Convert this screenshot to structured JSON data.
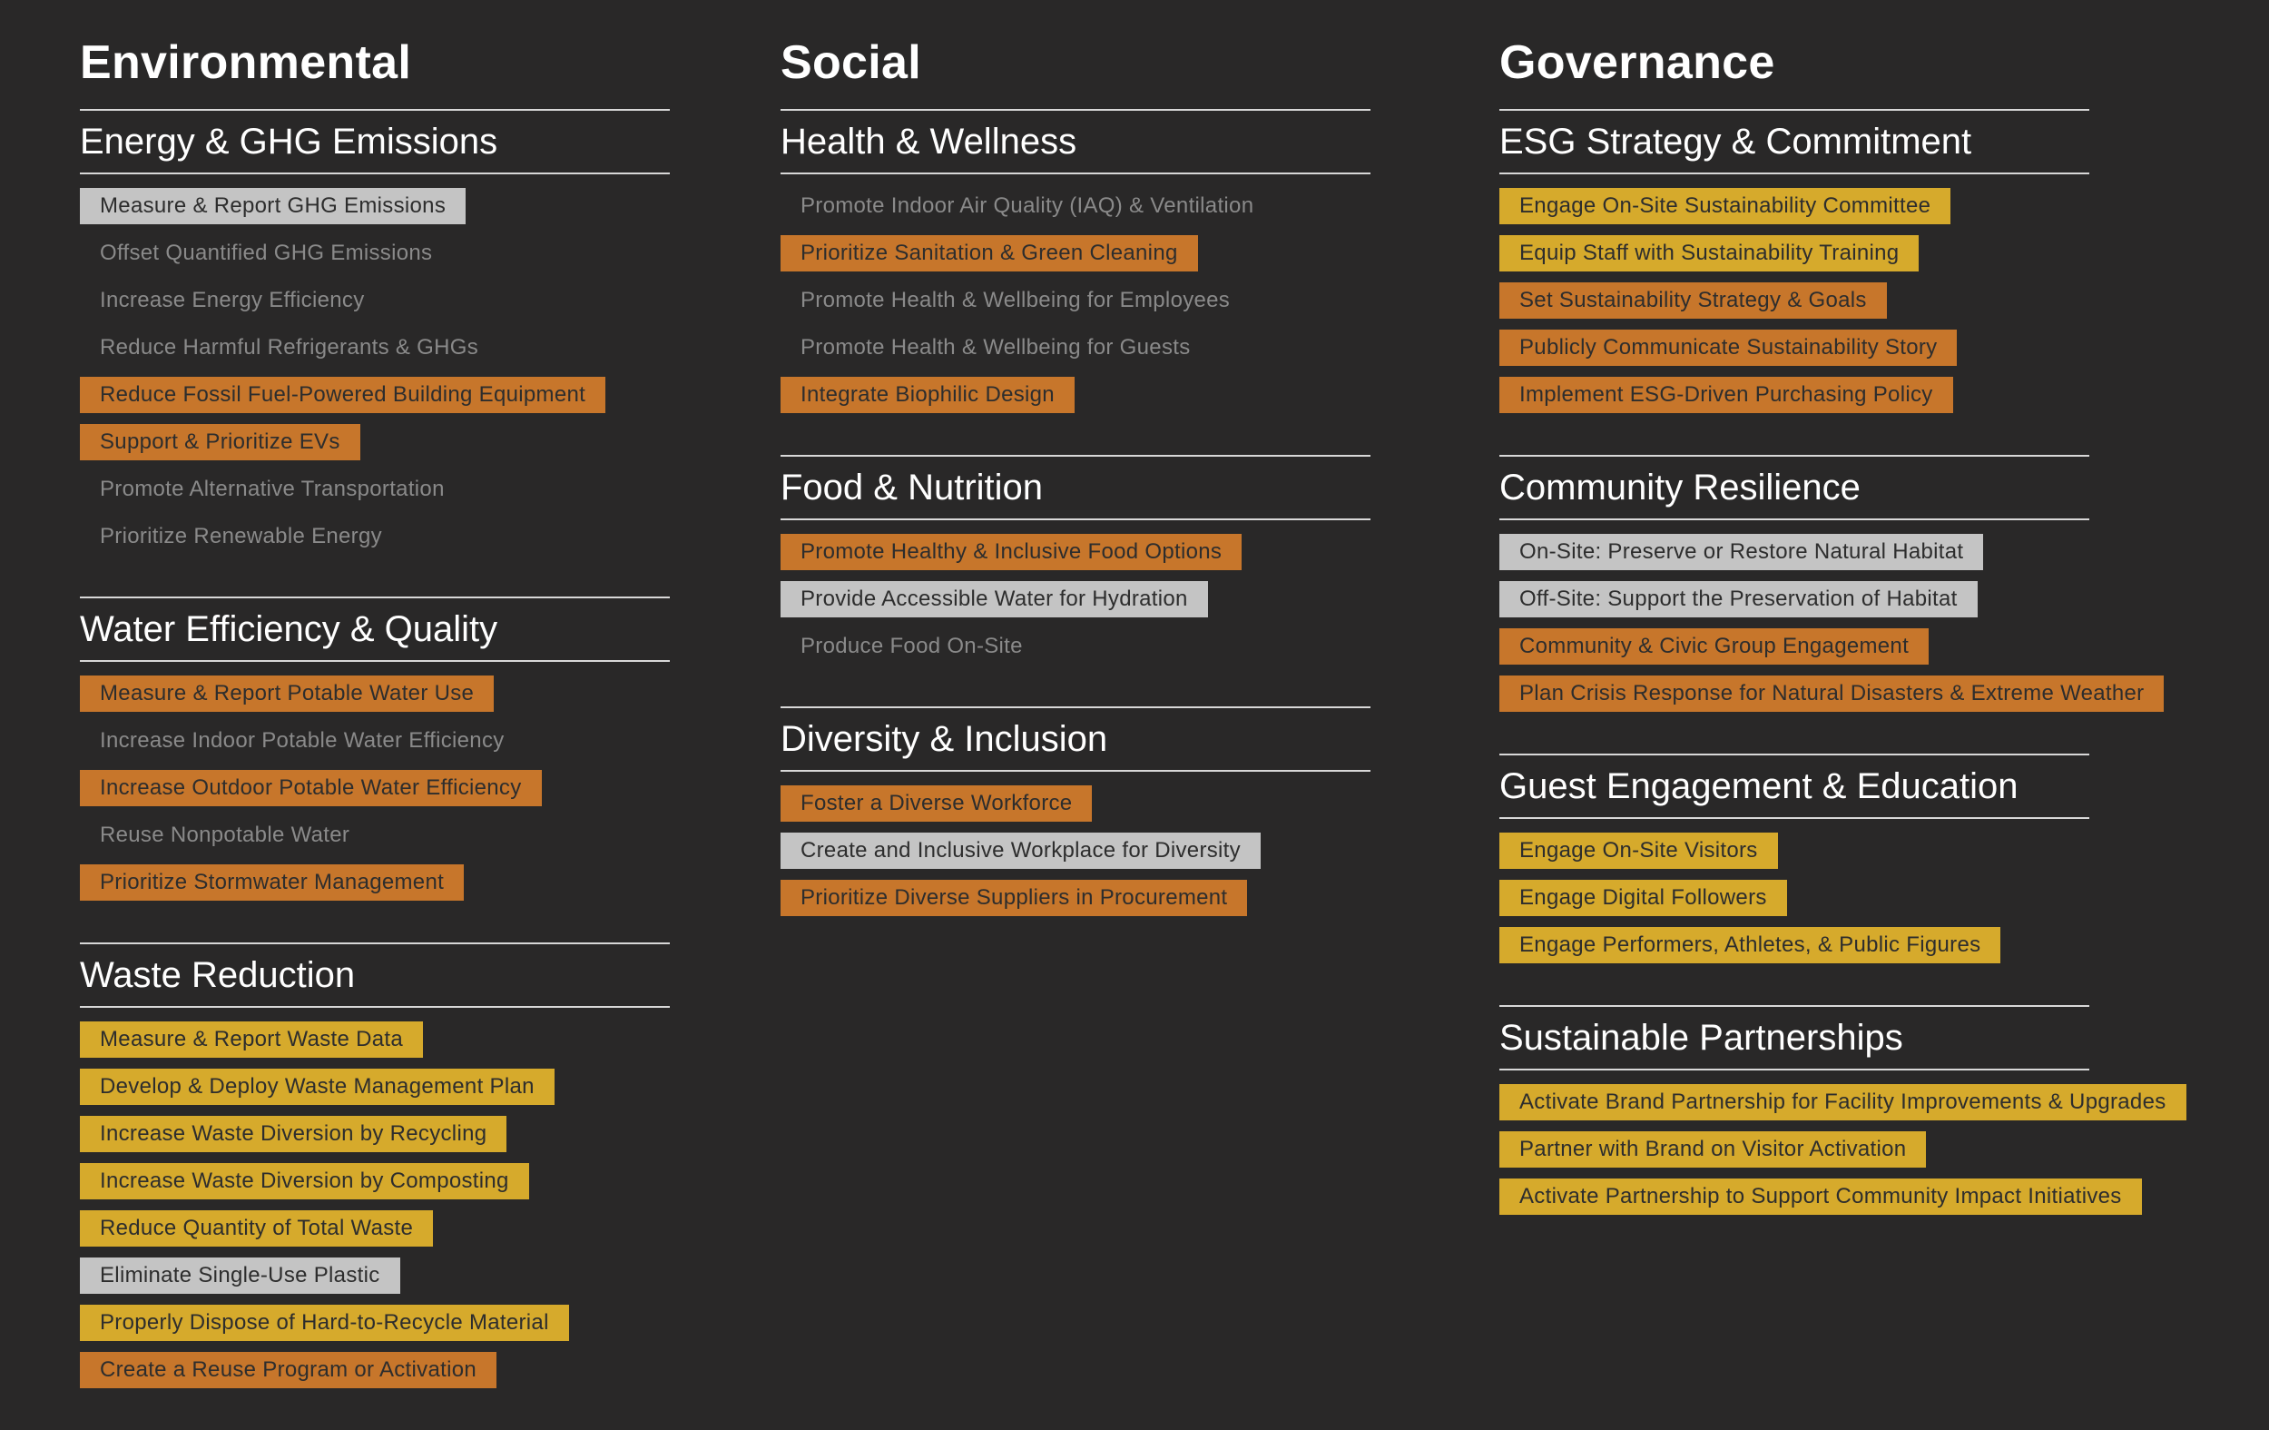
{
  "legend_colors": {
    "plain": "#8a8a8a",
    "orange": "#c7762b",
    "yellow": "#d6aa2c",
    "gray": "#c4c4c4",
    "background": "#292828"
  },
  "columns": [
    {
      "title": "Environmental",
      "sections": [
        {
          "title": "Energy & GHG Emissions",
          "items": [
            {
              "label": "Measure & Report GHG Emissions",
              "style": "gray"
            },
            {
              "label": "Offset Quantified GHG Emissions",
              "style": "plain"
            },
            {
              "label": "Increase Energy Efficiency",
              "style": "plain"
            },
            {
              "label": "Reduce Harmful Refrigerants & GHGs",
              "style": "plain"
            },
            {
              "label": "Reduce Fossil Fuel-Powered Building Equipment",
              "style": "orange"
            },
            {
              "label": "Support & Prioritize EVs",
              "style": "orange"
            },
            {
              "label": "Promote Alternative Transportation",
              "style": "plain"
            },
            {
              "label": "Prioritize Renewable Energy",
              "style": "plain"
            }
          ]
        },
        {
          "title": "Water Efficiency & Quality",
          "items": [
            {
              "label": "Measure & Report Potable Water Use",
              "style": "orange"
            },
            {
              "label": "Increase Indoor Potable Water Efficiency",
              "style": "plain"
            },
            {
              "label": "Increase Outdoor Potable Water Efficiency",
              "style": "orange"
            },
            {
              "label": "Reuse Nonpotable Water",
              "style": "plain"
            },
            {
              "label": "Prioritize Stormwater Management",
              "style": "orange"
            }
          ]
        },
        {
          "title": "Waste Reduction",
          "items": [
            {
              "label": "Measure & Report Waste Data",
              "style": "yellow"
            },
            {
              "label": "Develop & Deploy Waste Management Plan",
              "style": "yellow"
            },
            {
              "label": "Increase Waste Diversion by Recycling",
              "style": "yellow"
            },
            {
              "label": "Increase Waste Diversion by Composting",
              "style": "yellow"
            },
            {
              "label": "Reduce Quantity of Total Waste",
              "style": "yellow"
            },
            {
              "label": "Eliminate Single-Use Plastic",
              "style": "gray"
            },
            {
              "label": "Properly Dispose of Hard-to-Recycle Material",
              "style": "yellow"
            },
            {
              "label": "Create a Reuse Program or Activation",
              "style": "orange"
            }
          ]
        }
      ]
    },
    {
      "title": "Social",
      "sections": [
        {
          "title": "Health & Wellness",
          "items": [
            {
              "label": "Promote Indoor Air Quality (IAQ) & Ventilation",
              "style": "plain"
            },
            {
              "label": "Prioritize Sanitation & Green Cleaning",
              "style": "orange"
            },
            {
              "label": "Promote Health & Wellbeing for Employees",
              "style": "plain"
            },
            {
              "label": "Promote Health & Wellbeing for Guests",
              "style": "plain"
            },
            {
              "label": "Integrate Biophilic Design",
              "style": "orange"
            }
          ]
        },
        {
          "title": "Food & Nutrition",
          "items": [
            {
              "label": "Promote Healthy & Inclusive Food Options",
              "style": "orange"
            },
            {
              "label": "Provide Accessible Water for Hydration",
              "style": "gray"
            },
            {
              "label": "Produce Food On-Site",
              "style": "plain"
            }
          ]
        },
        {
          "title": "Diversity & Inclusion",
          "items": [
            {
              "label": "Foster a Diverse Workforce",
              "style": "orange"
            },
            {
              "label": "Create and Inclusive Workplace for Diversity",
              "style": "gray"
            },
            {
              "label": "Prioritize Diverse Suppliers in Procurement",
              "style": "orange"
            }
          ]
        }
      ]
    },
    {
      "title": "Governance",
      "sections": [
        {
          "title": "ESG Strategy & Commitment",
          "items": [
            {
              "label": "Engage On-Site Sustainability Committee",
              "style": "yellow"
            },
            {
              "label": "Equip Staff with Sustainability Training",
              "style": "yellow"
            },
            {
              "label": "Set Sustainability Strategy & Goals",
              "style": "orange"
            },
            {
              "label": "Publicly Communicate Sustainability Story",
              "style": "orange"
            },
            {
              "label": "Implement ESG-Driven Purchasing Policy",
              "style": "orange"
            }
          ]
        },
        {
          "title": "Community Resilience",
          "items": [
            {
              "label": "On-Site: Preserve or Restore Natural Habitat",
              "style": "gray"
            },
            {
              "label": "Off-Site: Support the Preservation of Habitat",
              "style": "gray"
            },
            {
              "label": "Community & Civic Group Engagement",
              "style": "orange"
            },
            {
              "label": "Plan Crisis Response for Natural Disasters & Extreme Weather",
              "style": "orange"
            }
          ]
        },
        {
          "title": "Guest Engagement & Education",
          "items": [
            {
              "label": "Engage On-Site Visitors",
              "style": "yellow"
            },
            {
              "label": "Engage Digital Followers",
              "style": "yellow"
            },
            {
              "label": "Engage Performers, Athletes, & Public Figures",
              "style": "yellow"
            }
          ]
        },
        {
          "title": "Sustainable Partnerships",
          "items": [
            {
              "label": "Activate Brand Partnership for Facility Improvements & Upgrades",
              "style": "yellow"
            },
            {
              "label": "Partner with Brand on Visitor Activation",
              "style": "yellow"
            },
            {
              "label": "Activate Partnership to Support Community Impact Initiatives",
              "style": "yellow"
            }
          ]
        }
      ]
    }
  ]
}
